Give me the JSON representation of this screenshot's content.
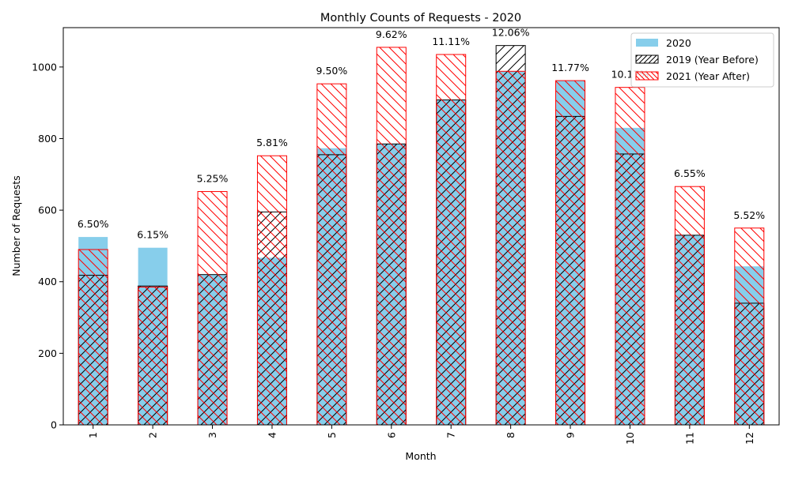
{
  "chart_data": {
    "type": "bar",
    "title": "Monthly Counts of Requests - 2020",
    "xlabel": "Month",
    "ylabel": "Number of Requests",
    "categories": [
      "1",
      "2",
      "3",
      "4",
      "5",
      "6",
      "7",
      "8",
      "9",
      "10",
      "11",
      "12"
    ],
    "ylim": [
      0,
      1110
    ],
    "yticks": [
      0,
      200,
      400,
      600,
      800,
      1000
    ],
    "series": [
      {
        "name": "2020",
        "values": [
          525,
          495,
          420,
          467,
          773,
          785,
          908,
          988,
          962,
          830,
          530,
          443
        ],
        "color": "#87ceeb",
        "hatch": "none"
      },
      {
        "name": "2019 (Year Before)",
        "values": [
          418,
          388,
          420,
          595,
          755,
          785,
          908,
          1060,
          862,
          757,
          530,
          340
        ],
        "color": "#000000",
        "hatch": "///"
      },
      {
        "name": "2021 (Year After)",
        "values": [
          490,
          385,
          652,
          752,
          953,
          1055,
          1035,
          988,
          962,
          943,
          666,
          550
        ],
        "color": "#ff0000",
        "hatch": "\\\\\\"
      }
    ],
    "data_labels": [
      "6.50%",
      "6.15%",
      "5.25%",
      "5.81%",
      "9.50%",
      "9.62%",
      "11.11%",
      "12.06%",
      "11.77%",
      "10.17%",
      "6.55%",
      "5.52%"
    ],
    "legend_position": "top-right",
    "grid": false
  }
}
